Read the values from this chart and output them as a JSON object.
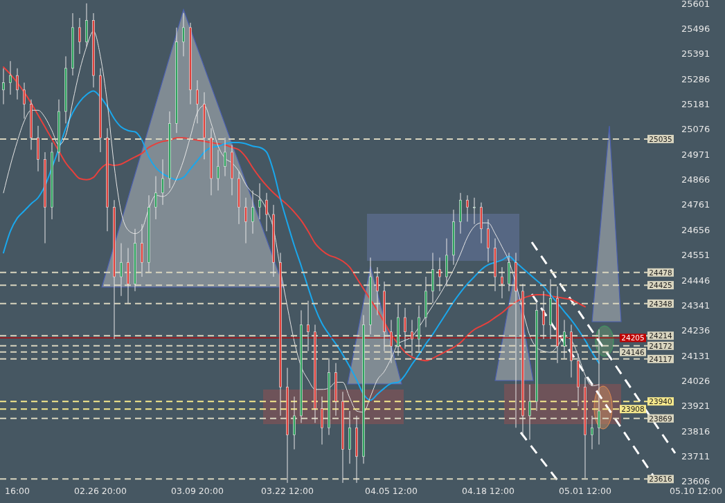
{
  "chart_data": {
    "type": "candlestick",
    "categories": [
      null,
      null,
      "16:00",
      null,
      null,
      null,
      null,
      null,
      null,
      null,
      null,
      null,
      null,
      null,
      "02.26 20:00",
      null,
      null,
      null,
      null,
      null,
      null,
      null,
      null,
      null,
      null,
      null,
      null,
      null,
      "03.09 20:00",
      null,
      null,
      null,
      null,
      null,
      null,
      null,
      null,
      null,
      null,
      null,
      null,
      "03.22 12:00",
      null,
      null,
      null,
      null,
      null,
      null,
      null,
      null,
      null,
      null,
      null,
      null,
      null,
      null,
      "04.05 12:00",
      null,
      null,
      null,
      null,
      null,
      null,
      null,
      null,
      null,
      null,
      null,
      null,
      null,
      "04.18 12:00",
      null,
      null,
      null,
      null,
      null,
      null,
      null,
      null,
      null,
      null,
      null,
      null,
      null,
      "05.01 12:00",
      null,
      null,
      null,
      null,
      null,
      null,
      null,
      null,
      null,
      null,
      null,
      null,
      null,
      null,
      null,
      "05.10 12:00",
      null,
      null,
      null
    ],
    "ohlc": [
      [
        25240,
        25330,
        25180,
        25270
      ],
      [
        25270,
        25360,
        25220,
        25300
      ],
      [
        25300,
        25330,
        25200,
        25240
      ],
      [
        25240,
        25270,
        25120,
        25180
      ],
      [
        25180,
        25200,
        24990,
        25040
      ],
      [
        25040,
        25090,
        24900,
        24950
      ],
      [
        24950,
        24980,
        24600,
        24750
      ],
      [
        24750,
        25020,
        24700,
        24980
      ],
      [
        24980,
        25200,
        24940,
        25150
      ],
      [
        25150,
        25380,
        25100,
        25330
      ],
      [
        25330,
        25560,
        25300,
        25500
      ],
      [
        25500,
        25540,
        25390,
        25440
      ],
      [
        25440,
        25601,
        25420,
        25530
      ],
      [
        25530,
        25560,
        25250,
        25300
      ],
      [
        25300,
        25330,
        24980,
        25040
      ],
      [
        25040,
        25080,
        24650,
        24750
      ],
      [
        24750,
        24780,
        24200,
        24460
      ],
      [
        24460,
        24600,
        24380,
        24520
      ],
      [
        24520,
        24580,
        24350,
        24430
      ],
      [
        24430,
        24660,
        24400,
        24600
      ],
      [
        24600,
        24680,
        24460,
        24520
      ],
      [
        24520,
        24800,
        24480,
        24750
      ],
      [
        24750,
        24880,
        24700,
        24810
      ],
      [
        24810,
        24950,
        24760,
        24870
      ],
      [
        24870,
        25150,
        24830,
        25100
      ],
      [
        25100,
        25500,
        25060,
        25440
      ],
      [
        25440,
        25560,
        25380,
        25500
      ],
      [
        25500,
        25520,
        25180,
        25240
      ],
      [
        25240,
        25280,
        25100,
        25180
      ],
      [
        25180,
        25230,
        24950,
        25040
      ],
      [
        25040,
        25080,
        24800,
        24870
      ],
      [
        24870,
        24990,
        24820,
        24920
      ],
      [
        24920,
        25040,
        24880,
        24980
      ],
      [
        24980,
        25010,
        24800,
        24870
      ],
      [
        24870,
        24900,
        24680,
        24750
      ],
      [
        24750,
        24790,
        24600,
        24690
      ],
      [
        24690,
        24820,
        24640,
        24750
      ],
      [
        24750,
        24850,
        24700,
        24780
      ],
      [
        24780,
        24810,
        24650,
        24720
      ],
      [
        24720,
        24760,
        24460,
        24520
      ],
      [
        24520,
        24560,
        23880,
        24000
      ],
      [
        24000,
        24080,
        23600,
        23800
      ],
      [
        23800,
        23960,
        23740,
        23880
      ],
      [
        23880,
        24320,
        23850,
        24260
      ],
      [
        24260,
        24360,
        24150,
        24230
      ],
      [
        24230,
        24260,
        23850,
        23910
      ],
      [
        23910,
        23960,
        23760,
        23830
      ],
      [
        23830,
        24120,
        23800,
        24060
      ],
      [
        24060,
        24100,
        23880,
        23940
      ],
      [
        23940,
        23980,
        23600,
        23740
      ],
      [
        23740,
        23900,
        23680,
        23830
      ],
      [
        23830,
        23880,
        23600,
        23710
      ],
      [
        23710,
        24300,
        23680,
        24260
      ],
      [
        24260,
        24540,
        24220,
        24460
      ],
      [
        24460,
        24500,
        24300,
        24400
      ],
      [
        24400,
        24440,
        24150,
        24230
      ],
      [
        24230,
        24280,
        24100,
        24170
      ],
      [
        24170,
        24350,
        24130,
        24290
      ],
      [
        24290,
        24330,
        24160,
        24230
      ],
      [
        24230,
        24280,
        24130,
        24200
      ],
      [
        24200,
        24340,
        24150,
        24290
      ],
      [
        24290,
        24460,
        24250,
        24400
      ],
      [
        24400,
        24560,
        24350,
        24490
      ],
      [
        24490,
        24540,
        24400,
        24460
      ],
      [
        24460,
        24620,
        24420,
        24550
      ],
      [
        24550,
        24740,
        24510,
        24690
      ],
      [
        24690,
        24810,
        24640,
        24780
      ],
      [
        24780,
        24800,
        24690,
        24750
      ],
      [
        24750,
        24790,
        24680,
        24750
      ],
      [
        24750,
        24770,
        24600,
        24660
      ],
      [
        24660,
        24700,
        24520,
        24580
      ],
      [
        24580,
        24620,
        24400,
        24460
      ],
      [
        24460,
        24500,
        24370,
        24430
      ],
      [
        24430,
        24560,
        24400,
        24520
      ],
      [
        24520,
        24560,
        23830,
        24400
      ],
      [
        24400,
        24430,
        23800,
        23880
      ],
      [
        23880,
        24010,
        23780,
        23940
      ],
      [
        23940,
        24360,
        23900,
        24320
      ],
      [
        24320,
        24400,
        24200,
        24260
      ],
      [
        24260,
        24450,
        24200,
        24370
      ],
      [
        24370,
        24420,
        24100,
        24170
      ],
      [
        24170,
        24280,
        24120,
        24230
      ],
      [
        24230,
        24260,
        24040,
        24110
      ],
      [
        24110,
        24140,
        23920,
        24000
      ],
      [
        24000,
        24040,
        23620,
        23800
      ],
      [
        23800,
        23880,
        23740,
        23830
      ],
      [
        23830,
        24240,
        23760,
        23900
      ],
      null,
      null,
      null,
      null,
      null,
      null,
      null,
      null,
      null,
      null,
      null,
      null,
      null,
      null,
      null,
      null,
      null
    ],
    "series": [
      {
        "type": "line",
        "color": "#e8403c",
        "values": [
          25335,
          25305,
          25270,
          25230,
          25185,
          25135,
          25085,
          25035,
          24985,
          24935,
          24900,
          24870,
          24865,
          24875,
          24910,
          24930,
          24925,
          24930,
          24945,
          24960,
          24975,
          25000,
          25015,
          25025,
          25030,
          25040,
          25040,
          25035,
          25030,
          25025,
          25020,
          25015,
          25010,
          25000,
          24990,
          24960,
          24915,
          24875,
          24840,
          24810,
          24785,
          24760,
          24730,
          24695,
          24650,
          24600,
          24570,
          24550,
          24540,
          24525,
          24500,
          24455,
          24410,
          24365,
          24320,
          24270,
          24220,
          24180,
          24145,
          24125,
          24115,
          24110,
          24120,
          24135,
          24150,
          24165,
          24185,
          24215,
          24240,
          24255,
          24270,
          24290,
          24310,
          24335,
          24355,
          24370,
          24380,
          24385,
          24385,
          24380,
          24375,
          24370,
          24365,
          24350,
          24335,
          null,
          null,
          null,
          null,
          null,
          null,
          null,
          null,
          null,
          null,
          null,
          null,
          null,
          null,
          null,
          null,
          null,
          null,
          null
        ]
      },
      {
        "type": "line",
        "color": "#1aa7ec",
        "values": [
          24560,
          24650,
          24705,
          24735,
          24765,
          24790,
          24840,
          24915,
          24995,
          25080,
          25145,
          25190,
          25220,
          25235,
          25210,
          25170,
          25120,
          25085,
          25070,
          25065,
          25030,
          24960,
          24915,
          24890,
          24875,
          24865,
          24875,
          24910,
          24945,
          24980,
          25000,
          25005,
          25015,
          25020,
          25020,
          25015,
          25005,
          25000,
          24980,
          24900,
          24785,
          24685,
          24590,
          24505,
          24415,
          24330,
          24265,
          24220,
          24180,
          24135,
          24085,
          24030,
          23970,
          23945,
          23970,
          23995,
          24015,
          24020,
          24050,
          24095,
          24135,
          24180,
          24220,
          24265,
          24310,
          24355,
          24395,
          24430,
          24460,
          24490,
          24510,
          24520,
          24530,
          24545,
          24520,
          24495,
          24470,
          24445,
          24420,
          24385,
          24350,
          24315,
          24280,
          24240,
          24195,
          24145,
          24100,
          null,
          null,
          null,
          null,
          null,
          null,
          null,
          null,
          null,
          null,
          null,
          null,
          null,
          null,
          null,
          null,
          null
        ]
      },
      {
        "type": "line",
        "color": "#e6e6e6",
        "values": [
          24810,
          24925,
          25025,
          25110,
          25155,
          25155,
          25125,
          25070,
          25010,
          25050,
          25190,
          25320,
          25420,
          25485,
          25380,
          25185,
          24920,
          24730,
          24655,
          24640,
          24660,
          24745,
          24800,
          24795,
          24815,
          24870,
          24945,
          25045,
          25145,
          25175,
          25100,
          25005,
          24955,
          24935,
          24900,
          24845,
          24810,
          24790,
          24740,
          24660,
          24490,
          24335,
          24190,
          24085,
          24030,
          23990,
          23990,
          23995,
          24020,
          24020,
          23955,
          23900,
          23895,
          23960,
          24030,
          24065,
          24120,
          24180,
          24195,
          24210,
          24250,
          24295,
          24340,
          24385,
          24435,
          24490,
          24555,
          24625,
          24670,
          24685,
          24685,
          24640,
          24585,
          24525,
          24430,
          24320,
          24215,
          24165,
          24150,
          24145,
          24170,
          24210,
          24195,
          24130,
          24050,
          24005,
          24010,
          null,
          null,
          null,
          null,
          null,
          null,
          null,
          null,
          null,
          null,
          null,
          null,
          null,
          null,
          null,
          null,
          null
        ]
      }
    ],
    "ylim": [
      23516,
      25615
    ],
    "yticks": [
      23606,
      23711,
      23816,
      23921,
      24026,
      24131,
      24236,
      24341,
      24446,
      24551,
      24656,
      24761,
      24866,
      24971,
      25076,
      25181,
      25286,
      25391,
      25496,
      25601
    ],
    "ref_lines": [
      {
        "axis": "y",
        "value": 25035,
        "label": "25035",
        "color": "#d9d5bf",
        "line_style": "dashed"
      },
      {
        "axis": "y",
        "value": 24478,
        "label": "24478",
        "color": "#d9d5bf",
        "line_style": "dashed"
      },
      {
        "axis": "y",
        "value": 24425,
        "label": "24425",
        "color": "#d9d5bf",
        "line_style": "dashed"
      },
      {
        "axis": "y",
        "value": 24348,
        "label": "24348",
        "color": "#d9d5bf",
        "line_style": "dashed"
      },
      {
        "axis": "y",
        "value": 24214,
        "label": "24214",
        "color": "#d9d5bf",
        "line_style": "dashed"
      },
      {
        "axis": "y",
        "value": 24205,
        "label": "24205",
        "color": "#c00000",
        "line_style": "solid"
      },
      {
        "axis": "y",
        "value": 24172,
        "label": "24172",
        "color": "#d9d5bf",
        "line_style": "dashed"
      },
      {
        "axis": "y",
        "value": 24146,
        "label": "24146",
        "color": "#d9d5bf",
        "line_style": "dashed"
      },
      {
        "axis": "y",
        "value": 24117,
        "label": "24117",
        "color": "#d9d5bf",
        "line_style": "dashed"
      },
      {
        "axis": "y",
        "value": 23940,
        "label": "23940",
        "color": "#f5e88c",
        "line_style": "dashed"
      },
      {
        "axis": "y",
        "value": 23908,
        "label": "23908",
        "color": "#f5e88c",
        "line_style": "dashed"
      },
      {
        "axis": "y",
        "value": 23869,
        "label": "23869",
        "color": "#d9d5bf",
        "line_style": "dashed"
      },
      {
        "axis": "y",
        "value": 23616,
        "label": "23616",
        "color": "#d9d5bf",
        "line_style": "dashed"
      }
    ]
  }
}
